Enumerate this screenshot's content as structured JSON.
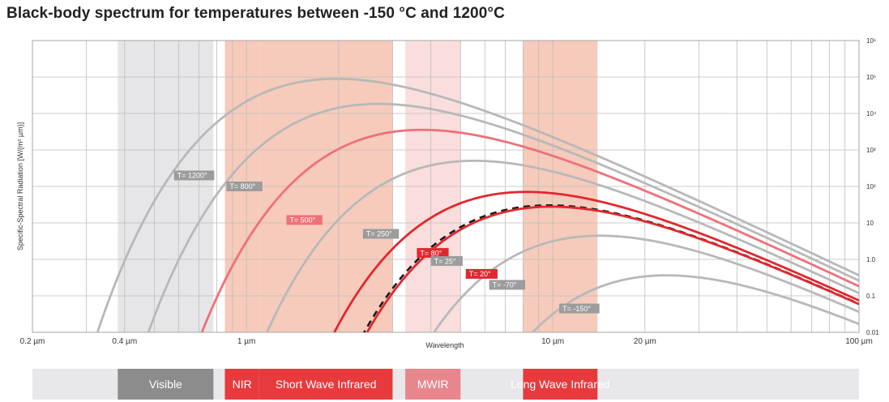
{
  "title": "Black-body spectrum for temperatures between -150 °C and 1200°C",
  "chart_data": {
    "type": "line",
    "title": "Black-body spectrum for temperatures between -150 °C and 1200°C",
    "xlabel": "Wavelength",
    "ylabel": "Specific-Spectral Radiation [W/(m² µm)]",
    "x_scale": "log",
    "y_scale": "log",
    "xlim": [
      0.2,
      100
    ],
    "ylim": [
      0.01,
      1000000
    ],
    "grid": true,
    "x_ticks": [
      {
        "value": 0.2,
        "label": "0.2 µm"
      },
      {
        "value": 0.4,
        "label": "0.4 µm"
      },
      {
        "value": 1,
        "label": "1 µm"
      },
      {
        "value": 10,
        "label": "10 µm"
      },
      {
        "value": 20,
        "label": "20 µm"
      },
      {
        "value": 100,
        "label": "100 µm"
      }
    ],
    "y_ticks": [
      {
        "value": 1000000,
        "label": "10⁶"
      },
      {
        "value": 100000,
        "label": "10⁵"
      },
      {
        "value": 10000,
        "label": "10⁴"
      },
      {
        "value": 1000,
        "label": "10³"
      },
      {
        "value": 100,
        "label": "10²"
      },
      {
        "value": 10,
        "label": "10"
      },
      {
        "value": 1,
        "label": "1.0"
      },
      {
        "value": 0.1,
        "label": "0.1"
      },
      {
        "value": 0.01,
        "label": "0.01"
      }
    ],
    "bands": [
      {
        "label": "Visible",
        "range": [
          0.38,
          0.78
        ],
        "color": "#e6e6e8",
        "label_color": "#8c8c8c"
      },
      {
        "label": "NIR",
        "range": [
          0.85,
          1.1
        ],
        "color": "#f6cbbb",
        "label_color": "#e73a3d"
      },
      {
        "label": "Short Wave Infrared",
        "range": [
          1.1,
          3.0
        ],
        "color": "#f6cbbb",
        "label_color": "#e73a3d"
      },
      {
        "label": "MWIR",
        "range": [
          3.3,
          5.0
        ],
        "color": "#f9dedd",
        "label_color": "#e8868e"
      },
      {
        "label": "Long Wave Infrared",
        "range": [
          8.0,
          14.0
        ],
        "color": "#f6cbbb",
        "label_color": "#e73a3d"
      }
    ],
    "series": [
      {
        "label": "T= 1200°",
        "temp_c": 1200,
        "color": "#b8b8b8",
        "dash": false,
        "tag": {
          "x": 0.58,
          "y": 200,
          "color": "#9c9c9c"
        }
      },
      {
        "label": "T= 800°",
        "temp_c": 800,
        "color": "#b8b8b8",
        "dash": false,
        "tag": {
          "x": 0.86,
          "y": 100,
          "color": "#9c9c9c"
        }
      },
      {
        "label": "T= 500°",
        "temp_c": 500,
        "color": "#ef7078",
        "dash": false,
        "tag": {
          "x": 1.35,
          "y": 12,
          "color": "#ef7078"
        }
      },
      {
        "label": "T= 250°",
        "temp_c": 250,
        "color": "#b8b8b8",
        "dash": false,
        "tag": {
          "x": 2.4,
          "y": 5,
          "color": "#9c9c9c"
        }
      },
      {
        "label": "T= 80°",
        "temp_c": 80,
        "color": "#e0282f",
        "dash": false,
        "tag": {
          "x": 3.6,
          "y": 1.5,
          "color": "#e0282f"
        }
      },
      {
        "label": "T= 25°",
        "temp_c": 25,
        "color": "#1a1a1a",
        "dash": true,
        "tag": {
          "x": 4.0,
          "y": 0.9,
          "color": "#9c9c9c"
        }
      },
      {
        "label": "T= 20°",
        "temp_c": 20,
        "color": "#e0282f",
        "dash": false,
        "tag": {
          "x": 5.2,
          "y": 0.4,
          "color": "#e0282f"
        }
      },
      {
        "label": "T= -70°",
        "temp_c": -70,
        "color": "#b8b8b8",
        "dash": false,
        "tag": {
          "x": 6.2,
          "y": 0.2,
          "color": "#9c9c9c"
        }
      },
      {
        "label": "T= -150°",
        "temp_c": -150,
        "color": "#b8b8b8",
        "dash": false,
        "tag": {
          "x": 10.5,
          "y": 0.045,
          "color": "#9c9c9c"
        }
      }
    ]
  }
}
